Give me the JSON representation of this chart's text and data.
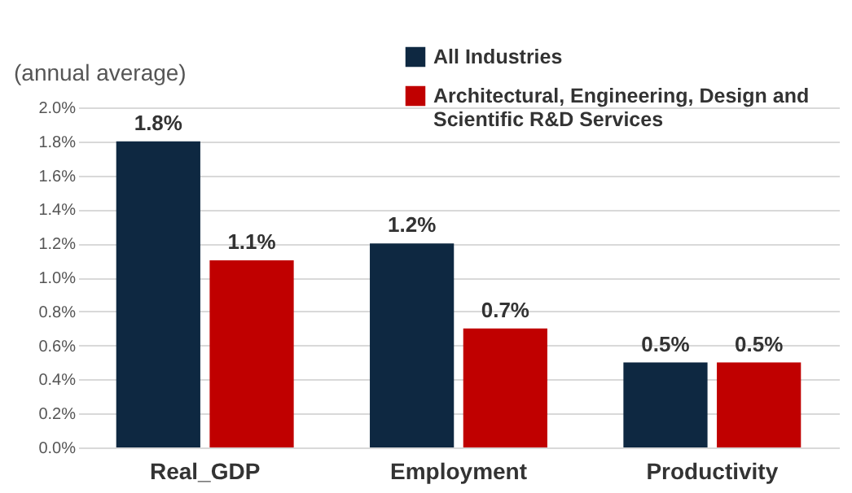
{
  "chart_data": {
    "type": "bar",
    "ylabel": "(annual average)",
    "categories": [
      "Real_GDP",
      "Employment",
      "Productivity"
    ],
    "series": [
      {
        "name": "All Industries",
        "color": "#0e2841",
        "values": [
          1.8,
          1.2,
          0.5
        ],
        "value_labels": [
          "1.8%",
          "1.2%",
          "0.5%"
        ]
      },
      {
        "name": "Architectural, Engineering, Design and Scientific R&D Services",
        "color": "#c00000",
        "values": [
          1.1,
          0.7,
          0.5
        ],
        "value_labels": [
          "1.1%",
          "0.7%",
          "0.5%"
        ]
      }
    ],
    "ylim": [
      0,
      2.0
    ],
    "yticks": [
      {
        "value": 0,
        "label": "0.0%"
      },
      {
        "value": 0.2,
        "label": "0.2%"
      },
      {
        "value": 0.4,
        "label": "0.4%"
      },
      {
        "value": 0.6,
        "label": "0.6%"
      },
      {
        "value": 0.8,
        "label": "0.8%"
      },
      {
        "value": 1.0,
        "label": "1.0%"
      },
      {
        "value": 1.2,
        "label": "1.2%"
      },
      {
        "value": 1.4,
        "label": "1.4%"
      },
      {
        "value": 1.6,
        "label": "1.6%"
      },
      {
        "value": 1.8,
        "label": "1.8%"
      },
      {
        "value": 2.0,
        "label": "2.0%"
      }
    ],
    "grid": "y",
    "legend": "top right"
  }
}
